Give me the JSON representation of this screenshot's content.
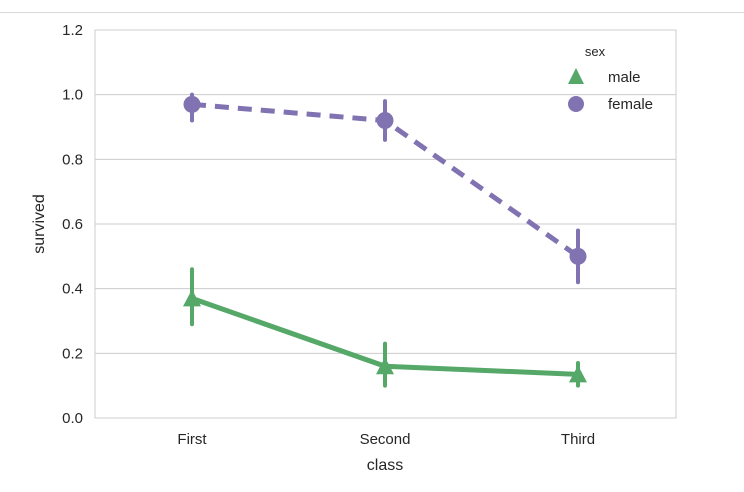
{
  "chart_data": {
    "type": "line",
    "xlabel": "class",
    "ylabel": "survived",
    "categories": [
      "First",
      "Second",
      "Third"
    ],
    "ylim": [
      0.0,
      1.2
    ],
    "yticks": [
      "0.0",
      "0.2",
      "0.4",
      "0.6",
      "0.8",
      "1.0",
      "1.2"
    ],
    "grid": true,
    "legend": {
      "title": "sex",
      "placement": "top-right",
      "entries": [
        "male",
        "female"
      ]
    },
    "series": [
      {
        "name": "male",
        "color": "#55a868",
        "marker": "triangle",
        "linestyle": "solid",
        "values": [
          0.37,
          0.16,
          0.135
        ],
        "ci_low": [
          0.29,
          0.1,
          0.1
        ],
        "ci_high": [
          0.46,
          0.23,
          0.17
        ]
      },
      {
        "name": "female",
        "color": "#8172b2",
        "marker": "circle",
        "linestyle": "dashed",
        "values": [
          0.97,
          0.92,
          0.5
        ],
        "ci_low": [
          0.92,
          0.86,
          0.42
        ],
        "ci_high": [
          1.0,
          0.98,
          0.58
        ]
      }
    ]
  }
}
